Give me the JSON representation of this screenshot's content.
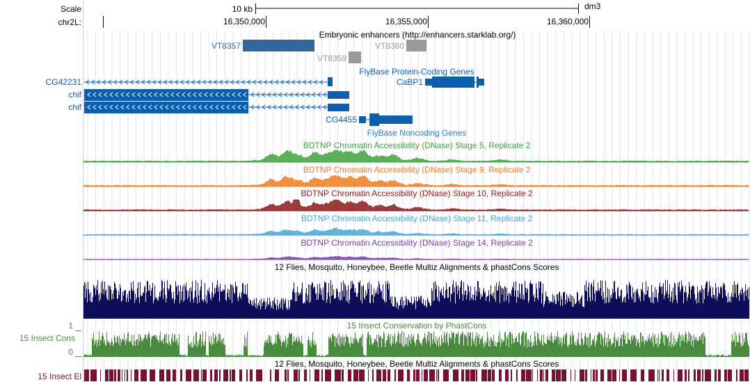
{
  "ruler": {
    "scale_label": "Scale",
    "chrom_label": "chr2L:",
    "scale_text": "10 kb",
    "assembly": "dm3",
    "positions": [
      "16,350,000",
      "16,355,000",
      "16,360,000"
    ]
  },
  "tracks": {
    "enhancers": {
      "title": "Embryonic enhancers (http://enhancers.starklab.org/)",
      "items": [
        {
          "label": "VT8357",
          "color": "#336699"
        },
        {
          "label": "VT8359",
          "color": "#999999"
        },
        {
          "label": "VT8360",
          "color": "#999999"
        }
      ]
    },
    "flybase_coding": {
      "title": "FlyBase Protein-Coding Genes",
      "color": "#0b5fae",
      "genes": [
        "CG42231",
        "chif",
        "chif",
        "CaBP1",
        "CG4455"
      ]
    },
    "flybase_noncoding": {
      "title": "FlyBase Noncoding Genes"
    },
    "dnase": [
      {
        "title": "BDTNP Chromatin Accessibility (DNase) Stage 5, Replicate 2",
        "color": "#3ea33e"
      },
      {
        "title": "BDTNP Chromatin Accessibility (DNase) Stage 9, Replicate 2",
        "color": "#f07c1e"
      },
      {
        "title": "BDTNP Chromatin Accessibility (DNase) Stage 10, Replicate 2",
        "color": "#8b1a1a"
      },
      {
        "title": "BDTNP Chromatin Accessibility (DNase) Stage 11, Replicate 2",
        "color": "#45a8d4"
      },
      {
        "title": "BDTNP Chromatin Accessibility (DNase) Stage 14, Replicate 2",
        "color": "#7b3fa8"
      }
    ],
    "multiz": {
      "title": "12 Flies, Mosquito, Honeybee, Beetle Multiz Alignments & phastCons Scores",
      "color": "#0d0d5a"
    },
    "phastcons": {
      "title": "15 Insect Conservation by PhastCons",
      "side_label": "15 Insect Cons",
      "ymax": "1",
      "ymin": "0",
      "color": "#4a8a3f"
    },
    "elements": {
      "title": "12 Flies, Mosquito, Honeybee, Beetle Multiz Alignments & phastCons Scores",
      "side_label": "15 Insect El",
      "color": "#7a1030"
    }
  }
}
